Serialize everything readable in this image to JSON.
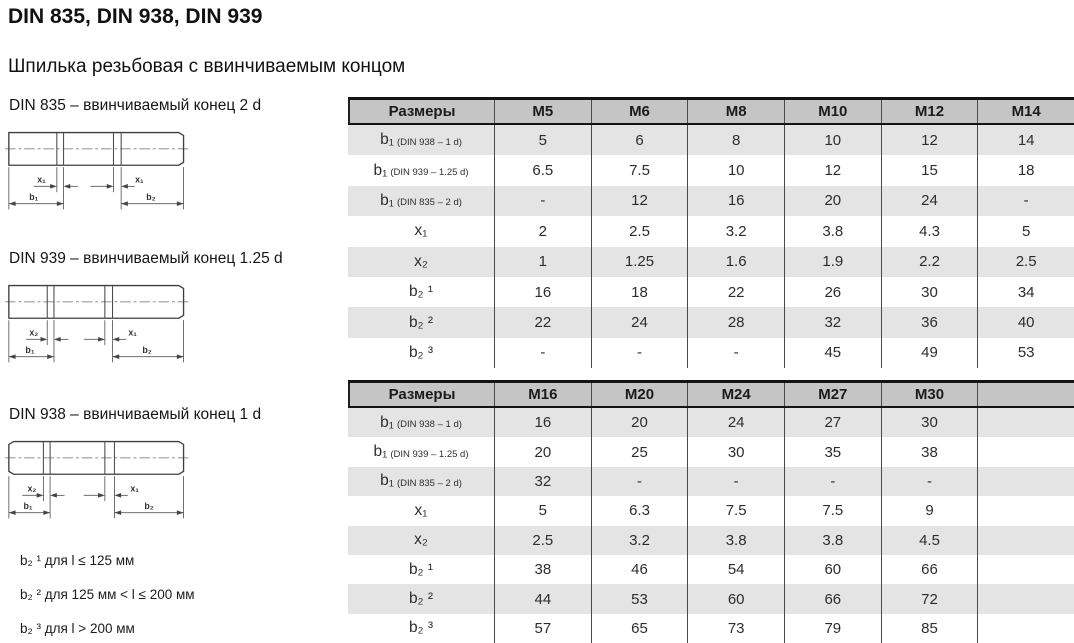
{
  "header": {
    "title": "DIN 835, DIN 938, DIN 939",
    "subtitle": "Шпилька резьбовая с ввинчиваемым концом"
  },
  "figures": [
    {
      "caption": "DIN 835 – ввинчиваемый конец 2 d",
      "dims": {
        "left_x": "x₁",
        "right_x": "x₁",
        "left_b": "b₁",
        "right_b": "b₂"
      }
    },
    {
      "caption": "DIN 939 – ввинчиваемый конец 1.25 d",
      "dims": {
        "left_x": "x₂",
        "right_x": "x₁",
        "left_b": "b₁",
        "right_b": "b₂"
      }
    },
    {
      "caption": "DIN 938 – ввинчиваемый конец 1 d",
      "dims": {
        "left_x": "x₂",
        "right_x": "x₁",
        "left_b": "b₁",
        "right_b": "b₂"
      }
    }
  ],
  "notes": [
    "b₂ ¹ для l ≤ 125 мм",
    "b₂ ² для 125 мм < l ≤ 200 мм",
    "b₂ ³ для l > 200 мм"
  ],
  "tables": [
    {
      "header": [
        "Размеры",
        "M5",
        "M6",
        "M8",
        "M10",
        "M12",
        "M14"
      ],
      "rows": [
        {
          "label_main": "b₁",
          "label_note": "(DIN 938 – 1 d)",
          "values": [
            "5",
            "6",
            "8",
            "10",
            "12",
            "14"
          ]
        },
        {
          "label_main": "b₁",
          "label_note": "(DIN 939 – 1.25 d)",
          "values": [
            "6.5",
            "7.5",
            "10",
            "12",
            "15",
            "18"
          ]
        },
        {
          "label_main": "b₁",
          "label_note": "(DIN 835 – 2 d)",
          "values": [
            "-",
            "12",
            "16",
            "20",
            "24",
            "-"
          ]
        },
        {
          "label_main": "x₁",
          "label_note": "",
          "values": [
            "2",
            "2.5",
            "3.2",
            "3.8",
            "4.3",
            "5"
          ]
        },
        {
          "label_main": "x₂",
          "label_note": "",
          "values": [
            "1",
            "1.25",
            "1.6",
            "1.9",
            "2.2",
            "2.5"
          ]
        },
        {
          "label_main": "b₂ ¹",
          "label_note": "",
          "values": [
            "16",
            "18",
            "22",
            "26",
            "30",
            "34"
          ]
        },
        {
          "label_main": "b₂ ²",
          "label_note": "",
          "values": [
            "22",
            "24",
            "28",
            "32",
            "36",
            "40"
          ]
        },
        {
          "label_main": "b₂ ³",
          "label_note": "",
          "values": [
            "-",
            "-",
            "-",
            "45",
            "49",
            "53"
          ]
        }
      ]
    },
    {
      "header": [
        "Размеры",
        "M16",
        "M20",
        "M24",
        "M27",
        "M30",
        ""
      ],
      "rows": [
        {
          "label_main": "b₁",
          "label_note": "(DIN 938 – 1 d)",
          "values": [
            "16",
            "20",
            "24",
            "27",
            "30",
            ""
          ]
        },
        {
          "label_main": "b₁",
          "label_note": "(DIN 939 – 1.25 d)",
          "values": [
            "20",
            "25",
            "30",
            "35",
            "38",
            ""
          ]
        },
        {
          "label_main": "b₁",
          "label_note": "(DIN 835 – 2 d)",
          "values": [
            "32",
            "-",
            "-",
            "-",
            "-",
            ""
          ]
        },
        {
          "label_main": "x₁",
          "label_note": "",
          "values": [
            "5",
            "6.3",
            "7.5",
            "7.5",
            "9",
            ""
          ]
        },
        {
          "label_main": "x₂",
          "label_note": "",
          "values": [
            "2.5",
            "3.2",
            "3.8",
            "3.8",
            "4.5",
            ""
          ]
        },
        {
          "label_main": "b₂ ¹",
          "label_note": "",
          "values": [
            "38",
            "46",
            "54",
            "60",
            "66",
            ""
          ]
        },
        {
          "label_main": "b₂ ²",
          "label_note": "",
          "values": [
            "44",
            "53",
            "60",
            "66",
            "72",
            ""
          ]
        },
        {
          "label_main": "b₂ ³",
          "label_note": "",
          "values": [
            "57",
            "65",
            "73",
            "79",
            "85",
            ""
          ]
        }
      ]
    }
  ],
  "colors": {
    "header_bg": "#c5c5c5",
    "stripe_bg": "#e4e4e4",
    "rule": "#141414",
    "grid_line": "#4a4a4a"
  }
}
